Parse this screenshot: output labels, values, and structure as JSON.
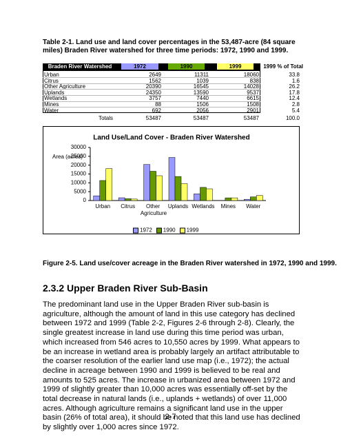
{
  "table": {
    "caption": "Table 2-1.  Land use and land cover percentages in the 53,487-acre (84 square miles) Braden River watershed for three time periods: 1972, 1990 and 1999.",
    "header": [
      "Braden River Watershed",
      "1972",
      "1990",
      "1999",
      "1999 % of Total"
    ],
    "rows": [
      [
        "Urban",
        "2649",
        "11311",
        "18060",
        "33.8"
      ],
      [
        "Citrus",
        "1562",
        "1039",
        "838",
        "1.6"
      ],
      [
        "Other Agriculture",
        "20390",
        "16545",
        "14028",
        "26.2"
      ],
      [
        "Uplands",
        "24350",
        "13590",
        "9537",
        "17.8"
      ],
      [
        "Wetlands",
        "3757",
        "7440",
        "6615",
        "12.4"
      ],
      [
        "Mines",
        "88",
        "1506",
        "1508",
        "2.8"
      ],
      [
        "Water",
        "692",
        "2056",
        "2901",
        "5.4"
      ]
    ],
    "totals": [
      "Totals",
      "53487",
      "53487",
      "53487",
      "100.0"
    ]
  },
  "chart_data": {
    "type": "bar",
    "title": "Land Use/Land Cover - Braden River Watershed",
    "y_label": "Area (acres)",
    "categories": [
      "Urban",
      "Citrus",
      "Other Agriculture",
      "Uplands",
      "Wetlands",
      "Mines",
      "Water"
    ],
    "series": [
      {
        "name": "1972",
        "color": "#9999ff",
        "values": [
          2649,
          1562,
          20390,
          24350,
          3757,
          88,
          692
        ]
      },
      {
        "name": "1990",
        "color": "#669900",
        "values": [
          11311,
          1039,
          16545,
          13590,
          7440,
          1506,
          2056
        ]
      },
      {
        "name": "1999",
        "color": "#ffff66",
        "values": [
          18060,
          838,
          14028,
          9537,
          6615,
          1508,
          2901
        ]
      }
    ],
    "ylim": [
      0,
      30000
    ],
    "yticks": [
      0,
      5000,
      10000,
      15000,
      20000,
      25000,
      30000
    ]
  },
  "figure_caption": "Figure 2-5.  Land use/cover acreage in the Braden River watershed in 1972, 1990 and 1999.",
  "section": {
    "heading": "2.3.2  Upper Braden River Sub-Basin",
    "paragraph": "The predominant land use in the Upper Braden River sub-basin is agriculture, although the amount of land in this use category has declined between 1972 and 1999 (Table 2-2, Figures 2-6 through 2-8). Clearly, the single greatest increase in land use during this time period was urban, which increased from 546 acres to 10,550 acres by 1999. What appears to be an increase in wetland area is probably largely an artifact attributable to the coarser resolution of the earlier land use map (i.e., 1972); the actual decline in acreage between 1990 and 1999 is believed to be real and amounts to 525 acres. The increase in urbanized area between 1972 and 1999 of slightly greater than 10,000 acres was essentially off-set by the total decrease in natural lands (i.e., uplands + wetlands) of over 11,000 acres. Although agriculture remains a significant land use in the upper basin (26% of total area), it should be noted that this land use has declined by slightly over 1,000 acres since 1972."
  },
  "page_number": "2-7"
}
